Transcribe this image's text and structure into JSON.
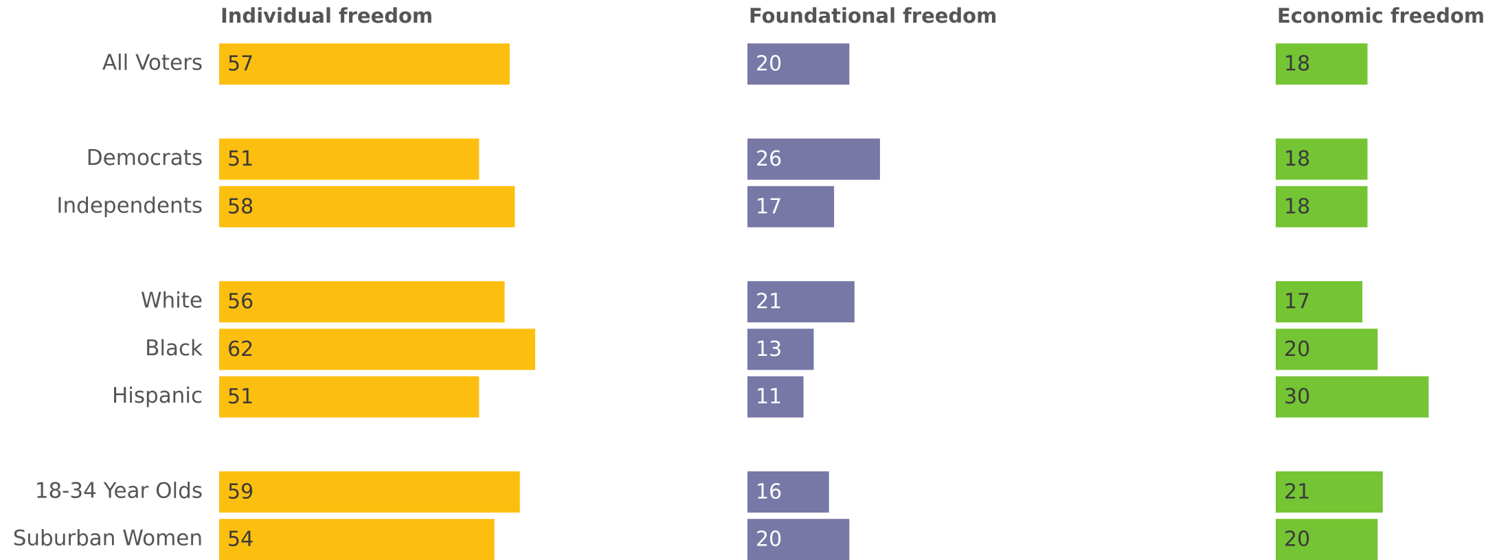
{
  "chart_data": {
    "type": "bar",
    "categories": [
      "All Voters",
      null,
      "Democrats",
      "Independents",
      null,
      "White",
      "Black",
      "Hispanic",
      null,
      "18-34 Year Olds",
      "Suburban Women"
    ],
    "series": [
      {
        "name": "Individual freedom",
        "color": "#fdbf0f",
        "label_color": "#3a3a3a",
        "values": [
          57,
          null,
          51,
          58,
          null,
          56,
          62,
          51,
          null,
          59,
          54
        ]
      },
      {
        "name": "Foundational freedom",
        "color": "#7778a6",
        "label_color": "#ffffff",
        "values": [
          20,
          null,
          26,
          17,
          null,
          21,
          13,
          11,
          null,
          16,
          20
        ]
      },
      {
        "name": "Economic freedom",
        "color": "#74c433",
        "label_color": "#3a3a3a",
        "values": [
          18,
          null,
          18,
          18,
          null,
          17,
          20,
          30,
          null,
          21,
          20
        ]
      }
    ]
  }
}
